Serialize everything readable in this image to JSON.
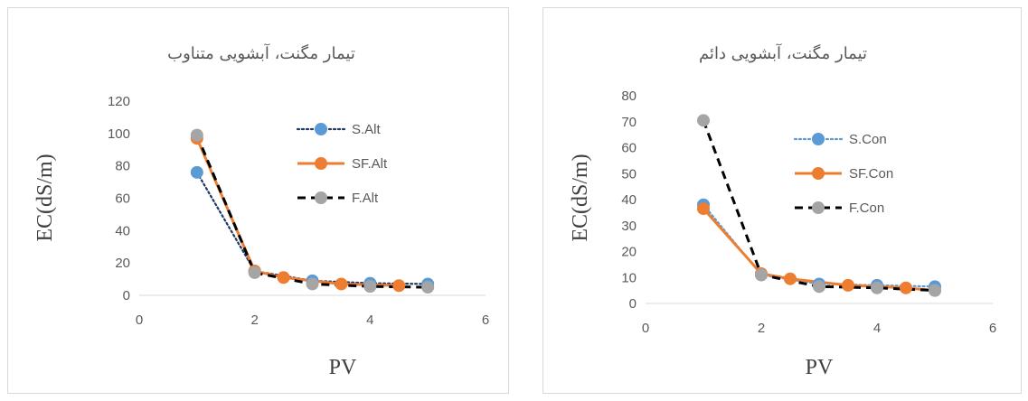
{
  "charts": [
    {
      "title": "تیمار مگنت، آبشویی متناوب",
      "xlabel": "PV",
      "ylabel": "EC(dS/m)"
    },
    {
      "title": "تیمار مگنت، آبشویی دائم",
      "xlabel": "PV",
      "ylabel": "EC(dS/m)"
    }
  ],
  "chart_data": [
    {
      "type": "line",
      "title": "تیمار مگنت، آبشویی متناوب",
      "xlabel": "PV",
      "ylabel": "EC(dS/m)",
      "xlim": [
        0,
        6
      ],
      "ylim": [
        0,
        120
      ],
      "x_ticks": [
        0,
        2,
        4,
        6
      ],
      "y_ticks": [
        0,
        20,
        40,
        60,
        80,
        100,
        120
      ],
      "grid": false,
      "legend_position": "top-right",
      "series": [
        {
          "name": "S.Alt",
          "color": "#5B9BD5",
          "line_style": "dotted",
          "line_color": "#203864",
          "x": [
            1,
            2,
            3,
            4,
            5
          ],
          "y": [
            76,
            15,
            9,
            7.5,
            7
          ]
        },
        {
          "name": "SF.Alt",
          "color": "#ED7D31",
          "line_style": "solid",
          "line_color": "#ED7D31",
          "x": [
            1,
            2,
            2.5,
            3.5,
            4.5
          ],
          "y": [
            97,
            15,
            11,
            7,
            6
          ]
        },
        {
          "name": "F.Alt",
          "color": "#A5A5A5",
          "line_style": "dashed",
          "line_color": "#000000",
          "x": [
            1,
            2,
            3,
            4,
            5
          ],
          "y": [
            99,
            14,
            7,
            5.5,
            5
          ]
        }
      ]
    },
    {
      "type": "line",
      "title": "تیمار مگنت، آبشویی دائم",
      "xlabel": "PV",
      "ylabel": "EC(dS/m)",
      "xlim": [
        0,
        6
      ],
      "ylim": [
        0,
        80
      ],
      "x_ticks": [
        0,
        2,
        4,
        6
      ],
      "y_ticks": [
        0,
        10,
        20,
        30,
        40,
        50,
        60,
        70,
        80
      ],
      "grid": false,
      "legend_position": "top-right",
      "series": [
        {
          "name": "S.Con",
          "color": "#5B9BD5",
          "line_style": "dotted",
          "line_color": "#5B9BD5",
          "x": [
            1,
            2,
            3,
            4,
            5
          ],
          "y": [
            38,
            11,
            7.5,
            7,
            6.5
          ]
        },
        {
          "name": "SF.Con",
          "color": "#ED7D31",
          "line_style": "solid",
          "line_color": "#ED7D31",
          "x": [
            1,
            2,
            2.5,
            3.5,
            4.5,
            5
          ],
          "y": [
            36.5,
            11.5,
            9.5,
            7,
            6,
            5
          ]
        },
        {
          "name": "F.Con",
          "color": "#A5A5A5",
          "line_style": "dashed",
          "line_color": "#000000",
          "x": [
            1,
            2,
            3,
            4,
            5
          ],
          "y": [
            70.5,
            11,
            6.5,
            6,
            5
          ]
        }
      ]
    }
  ]
}
